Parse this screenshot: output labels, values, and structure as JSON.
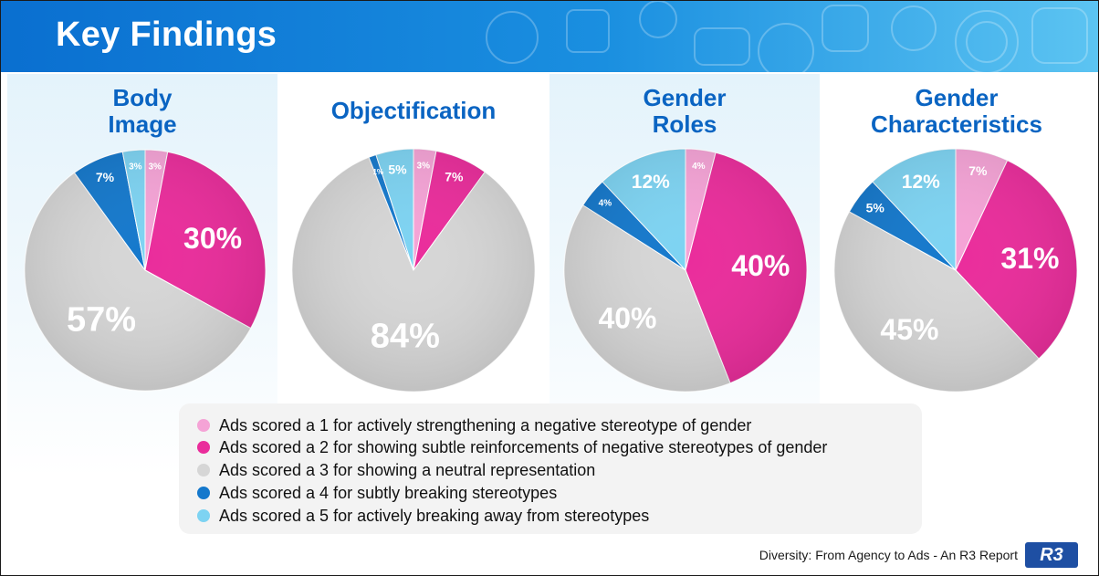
{
  "header": {
    "title": "Key Findings"
  },
  "colors": {
    "score1": "#f5a3d6",
    "score2": "#ea2c9b",
    "score3": "#d6d6d6",
    "score4": "#1478cc",
    "score5": "#7dd3f2"
  },
  "chart_data": [
    {
      "type": "pie",
      "title": "Body Image",
      "categories": [
        "Score 1",
        "Score 2",
        "Score 3",
        "Score 4",
        "Score 5"
      ],
      "values": [
        3,
        30,
        57,
        7,
        3
      ],
      "labels": [
        "3%",
        "30%",
        "57%",
        "7%",
        "3%"
      ]
    },
    {
      "type": "pie",
      "title": "Objectification",
      "categories": [
        "Score 1",
        "Score 2",
        "Score 3",
        "Score 4",
        "Score 5"
      ],
      "values": [
        3,
        7,
        84,
        1,
        5
      ],
      "labels": [
        "3%",
        "7%",
        "84%",
        "1%",
        "5%"
      ]
    },
    {
      "type": "pie",
      "title": "Gender Roles",
      "categories": [
        "Score 1",
        "Score 2",
        "Score 3",
        "Score 4",
        "Score 5"
      ],
      "values": [
        4,
        40,
        40,
        4,
        12
      ],
      "labels": [
        "4%",
        "40%",
        "40%",
        "4%",
        "12%"
      ]
    },
    {
      "type": "pie",
      "title": "Gender Characteristics",
      "categories": [
        "Score 1",
        "Score 2",
        "Score 3",
        "Score 4",
        "Score 5"
      ],
      "values": [
        7,
        31,
        45,
        5,
        12
      ],
      "labels": [
        "7%",
        "31%",
        "45%",
        "5%",
        "12%"
      ]
    }
  ],
  "panels": [
    {
      "title_lines": [
        "Body",
        "Image"
      ]
    },
    {
      "title_lines": [
        "Objectification"
      ]
    },
    {
      "title_lines": [
        "Gender",
        "Roles"
      ]
    },
    {
      "title_lines": [
        "Gender",
        "Characteristics"
      ]
    }
  ],
  "legend": [
    {
      "text": "Ads scored a 1 for actively strengthening a negative stereotype of gender"
    },
    {
      "text": "Ads scored a 2 for showing subtle reinforcements of negative stereotypes of gender"
    },
    {
      "text": "Ads scored a 3 for showing a neutral representation"
    },
    {
      "text": "Ads scored a 4 for subtly breaking stereotypes"
    },
    {
      "text": "Ads scored a 5 for actively breaking away from stereotypes"
    }
  ],
  "footer": {
    "text": "Diversity: From Agency to Ads - An R3 Report",
    "logo": "R3"
  }
}
